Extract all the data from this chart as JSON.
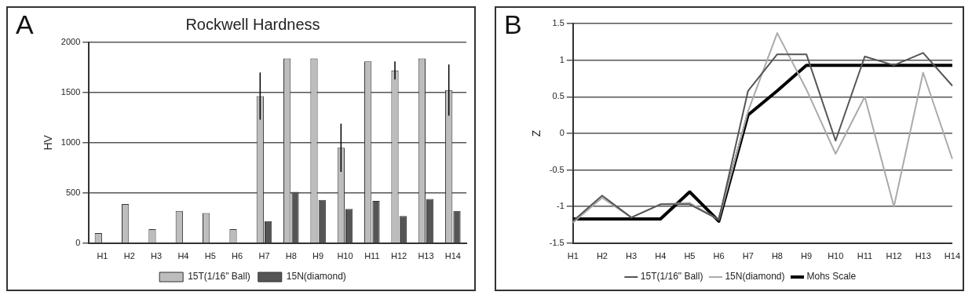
{
  "chart_data": [
    {
      "type": "bar",
      "title": "Rockwell Hardness",
      "ylabel": "HV",
      "annotations": [
        "A"
      ],
      "categories": [
        "H1",
        "H2",
        "H3",
        "H4",
        "H5",
        "H6",
        "H7",
        "H8",
        "H9",
        "H10",
        "H11",
        "H12",
        "H13",
        "H14"
      ],
      "series": [
        {
          "name": "15T(1/16\" Ball)",
          "color": "#bdbdbd",
          "values": [
            100,
            390,
            140,
            320,
            300,
            140,
            1465,
            1840,
            1840,
            950,
            1810,
            1720,
            1840,
            1525
          ],
          "errors": [
            null,
            null,
            null,
            null,
            null,
            null,
            235,
            null,
            null,
            240,
            null,
            90,
            null,
            255
          ]
        },
        {
          "name": "15N(diamond)",
          "color": "#555555",
          "values": [
            null,
            null,
            null,
            null,
            null,
            null,
            220,
            510,
            430,
            340,
            420,
            270,
            440,
            320
          ]
        }
      ],
      "ylim": [
        0,
        2000
      ],
      "yticks": [
        0,
        500,
        1000,
        1500,
        2000
      ],
      "grid": "y",
      "legend": "bottom"
    },
    {
      "type": "line",
      "ylabel": "Z",
      "annotations": [
        "B"
      ],
      "categories": [
        "H1",
        "H2",
        "H3",
        "H4",
        "H5",
        "H6",
        "H7",
        "H8",
        "H9",
        "H10",
        "H11",
        "H12",
        "H13",
        "H14"
      ],
      "series": [
        {
          "name": "15T(1/16\" Ball)",
          "color": "#555555",
          "values": [
            -1.2,
            -0.85,
            -1.15,
            -0.97,
            -0.97,
            -1.18,
            0.58,
            1.08,
            1.08,
            -0.1,
            1.05,
            0.93,
            1.1,
            0.65
          ]
        },
        {
          "name": "15N(diamond)",
          "color": "#aaaaaa",
          "values": [
            -1.22,
            -0.88,
            -1.15,
            -0.97,
            -0.95,
            -1.18,
            0.3,
            1.37,
            0.6,
            -0.28,
            0.5,
            -1.0,
            0.83,
            -0.35
          ]
        },
        {
          "name": "Mohs Scale",
          "color": "#000000",
          "values": [
            -1.17,
            -1.17,
            -1.17,
            -1.17,
            -0.8,
            -1.2,
            0.25,
            0.58,
            0.93,
            0.93,
            0.93,
            0.93,
            0.93,
            0.93
          ]
        }
      ],
      "ylim": [
        -1.5,
        1.5
      ],
      "yticks": [
        1.5,
        1,
        0.5,
        0,
        -0.5,
        -1,
        -1.5
      ],
      "grid": "y",
      "legend": "bottom",
      "marker": "none"
    }
  ]
}
